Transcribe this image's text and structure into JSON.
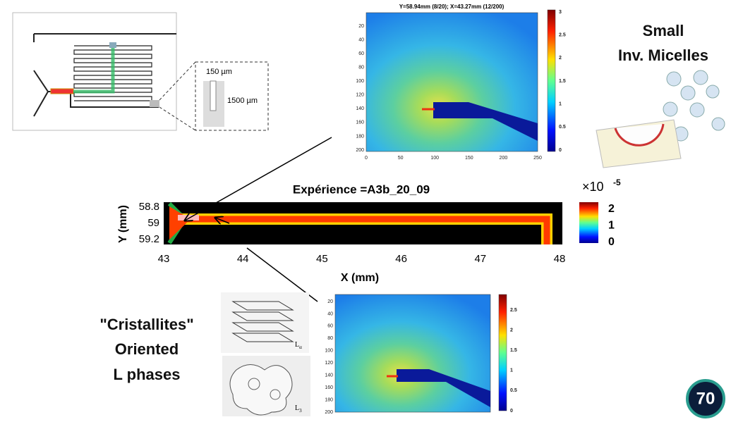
{
  "top_map": {
    "title": "Y=58.94mm (8/20); X=43.27mm (12/200)",
    "y_ticks": [
      "20",
      "40",
      "60",
      "80",
      "100",
      "120",
      "140",
      "160",
      "180",
      "200"
    ],
    "x_ticks": [
      "0",
      "50",
      "100",
      "150",
      "200",
      "250"
    ],
    "colorbar_ticks": [
      "3",
      "2.5",
      "2",
      "1.5",
      "1",
      "0.5",
      "0"
    ]
  },
  "micelles_label": [
    "Small",
    "Inv. Micelles"
  ],
  "main_map": {
    "title": "Expérience =A3b_20_09",
    "y_label": "Y (mm)",
    "x_label": "X (mm)",
    "y_ticks": [
      "58.8",
      "59",
      "59.2"
    ],
    "x_ticks": [
      "43",
      "44",
      "45",
      "46",
      "47",
      "48"
    ],
    "colorbar_factor": "×10",
    "colorbar_exponent": "-5",
    "colorbar_ticks": [
      "2",
      "1",
      "0"
    ]
  },
  "bottom_map": {
    "y_ticks": [
      "20",
      "40",
      "60",
      "80",
      "100",
      "120",
      "140",
      "160",
      "180",
      "200"
    ],
    "colorbar_ticks": [
      "2.5",
      "2",
      "1.5",
      "1",
      "0.5",
      "0"
    ]
  },
  "phases_label": [
    "\"Cristallites\"",
    "Oriented",
    "L phases"
  ],
  "chip": {
    "width_label": "150 µm",
    "depth_label": "1500 µm"
  },
  "phase_sketch": {
    "lamellar": "L",
    "lamellar_sub": "α",
    "sponge": "L",
    "sponge_sub": "3"
  },
  "page_number": "70"
}
